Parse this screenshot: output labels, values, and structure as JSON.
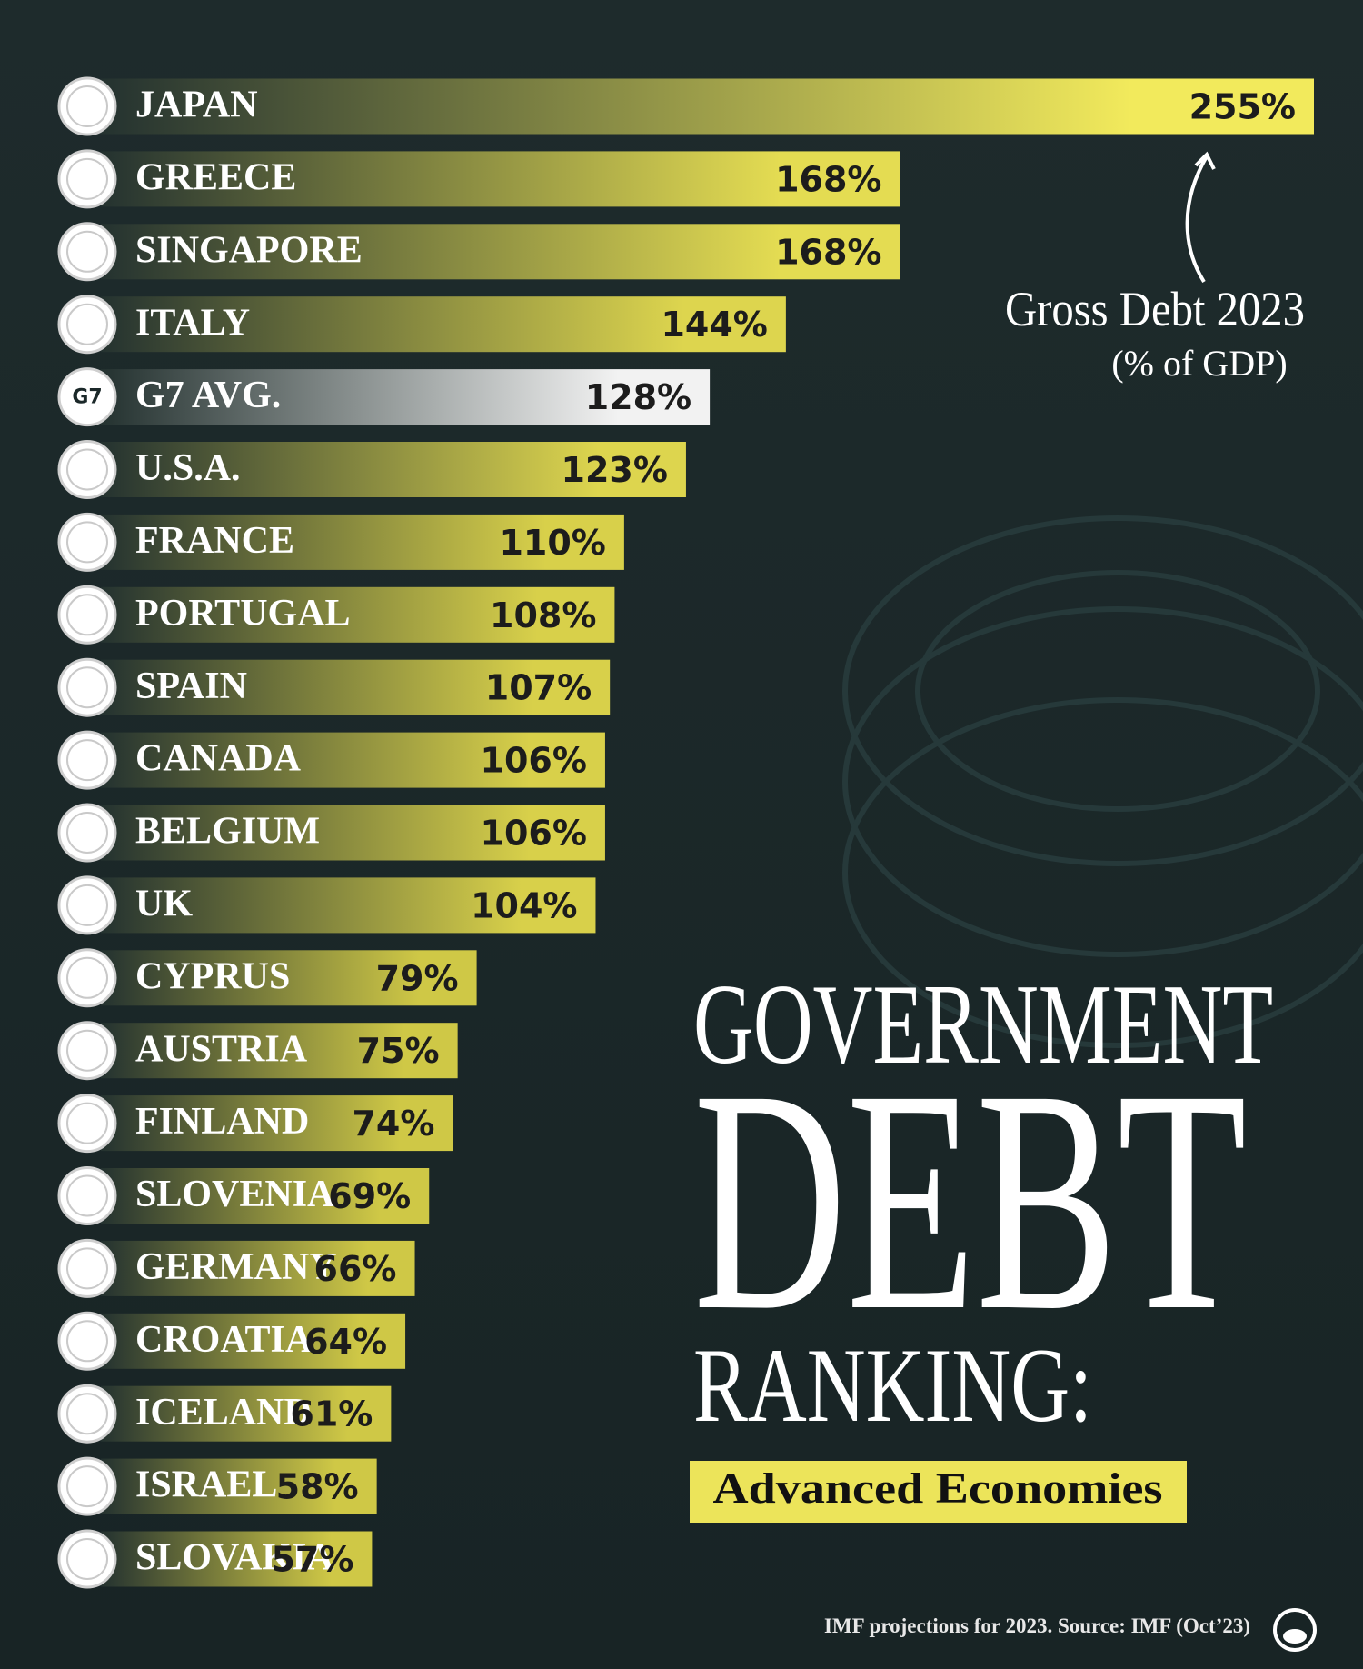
{
  "chart_data": {
    "type": "bar",
    "orientation": "horizontal",
    "title": [
      "GOVERNMENT",
      "DEBT",
      "RANKING:"
    ],
    "subtitle": "Advanced Economies",
    "annotation": "Gross Debt 2023",
    "annotation_unit": "(% of GDP)",
    "source": "IMF projections for 2023. Source: IMF (Oct’23)",
    "categories": [
      "JAPAN",
      "GREECE",
      "SINGAPORE",
      "ITALY",
      "G7 AVG.",
      "U.S.A.",
      "FRANCE",
      "PORTUGAL",
      "SPAIN",
      "CANADA",
      "BELGIUM",
      "UK",
      "CYPRUS",
      "AUSTRIA",
      "FINLAND",
      "SLOVENIA",
      "GERMANY",
      "CROATIA",
      "ICELAND",
      "ISRAEL",
      "SLOVAKIA"
    ],
    "values": [
      255,
      168,
      168,
      144,
      128,
      123,
      110,
      108,
      107,
      106,
      106,
      104,
      79,
      75,
      74,
      69,
      66,
      64,
      61,
      58,
      57
    ],
    "value_labels": [
      "255%",
      "168%",
      "168%",
      "144%",
      "128%",
      "123%",
      "110%",
      "108%",
      "107%",
      "106%",
      "106%",
      "104%",
      "79%",
      "75%",
      "74%",
      "69%",
      "66%",
      "64%",
      "61%",
      "58%",
      "57%"
    ],
    "colors": [
      "#f2ea5c",
      "#e4dc52",
      "#e4dc52",
      "#ddd54e",
      "#f2f2f2",
      "#ddd54e",
      "#d8d04a",
      "#d8d04a",
      "#d8d04a",
      "#d8d04a",
      "#d8d04a",
      "#d8d04a",
      "#cfc846",
      "#cfc846",
      "#cfc846",
      "#cfc846",
      "#cfc846",
      "#cfc846",
      "#cfc846",
      "#cfc846",
      "#cfc846"
    ],
    "flag_labels": [
      null,
      null,
      null,
      null,
      "G7",
      null,
      null,
      null,
      null,
      null,
      null,
      null,
      null,
      null,
      null,
      null,
      null,
      null,
      null,
      null,
      null
    ]
  }
}
